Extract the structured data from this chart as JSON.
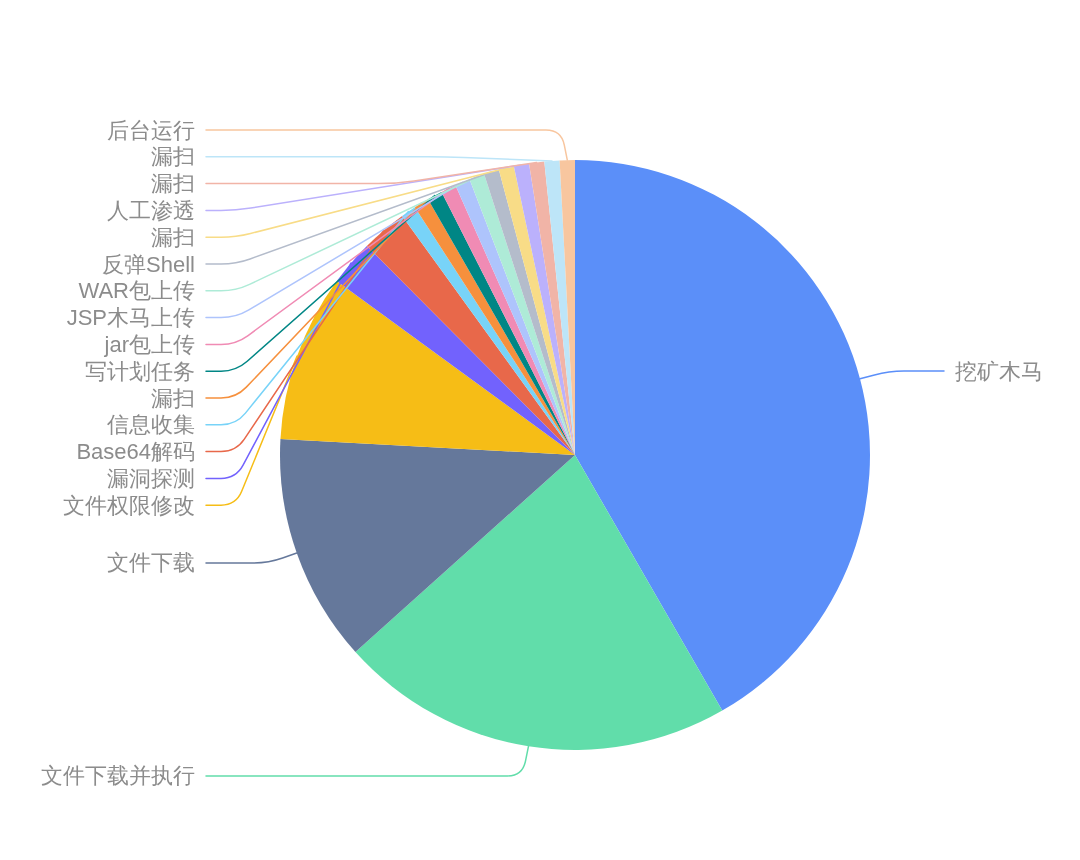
{
  "chart_data": {
    "type": "pie",
    "categories": [
      "挖矿木马",
      "文件下载并执行",
      "文件下载",
      "文件权限修改",
      "漏洞探测",
      "Base64解码",
      "信息收集",
      "漏扫",
      "写计划任务",
      "jar包上传",
      "JSP木马上传",
      "WAR包上传",
      "反弹Shell",
      "漏扫",
      "人工渗透",
      "漏扫",
      "漏扫",
      "后台运行"
    ],
    "values": [
      41.67,
      21.67,
      12.5,
      9.17,
      2.5,
      2.5,
      0.83,
      0.83,
      0.83,
      0.83,
      0.83,
      0.83,
      0.83,
      0.83,
      0.83,
      0.83,
      0.83,
      0.83
    ],
    "colors": [
      "#5b8ff9",
      "#61ddaa",
      "#65789b",
      "#f6bd16",
      "#7262fd",
      "#e8684a",
      "#78d3f8",
      "#f6903d",
      "#008685",
      "#f08bb4",
      "#aec4fc",
      "#aeebd7",
      "#b4bccb",
      "#f8dc87",
      "#bbb1fc",
      "#f1b4a7",
      "#bde5f8",
      "#f8c69f"
    ]
  }
}
